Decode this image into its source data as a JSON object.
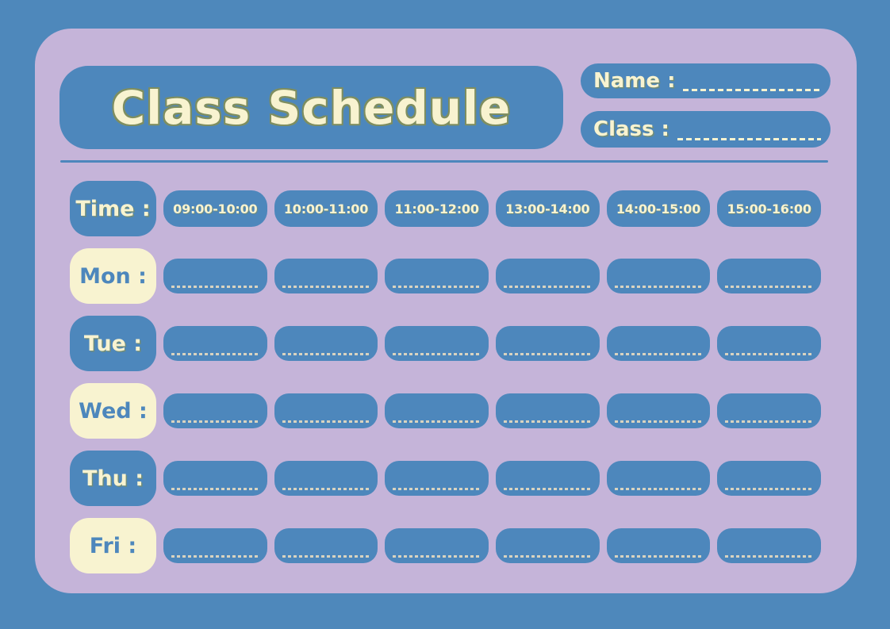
{
  "title": "Class Schedule",
  "header_fields": {
    "name_label": "Name :",
    "class_label": "Class :"
  },
  "schedule": {
    "time_label": "Time :",
    "time_slots": [
      "09:00-10:00",
      "10:00-11:00",
      "11:00-12:00",
      "13:00-14:00",
      "14:00-15:00",
      "15:00-16:00"
    ],
    "days": [
      {
        "label": "Mon :",
        "variant": "cream"
      },
      {
        "label": "Tue :",
        "variant": "blue"
      },
      {
        "label": "Wed :",
        "variant": "cream"
      },
      {
        "label": "Thu :",
        "variant": "blue"
      },
      {
        "label": "Fri :",
        "variant": "cream"
      }
    ]
  },
  "colors": {
    "background_blue": "#4e88bb",
    "box_blue": "#4d87bc",
    "card_lavender": "#c5b4d9",
    "cream": "#f8f3d0",
    "title_outline": "#7e8e60",
    "cell_dash": "#d8d3c0"
  }
}
